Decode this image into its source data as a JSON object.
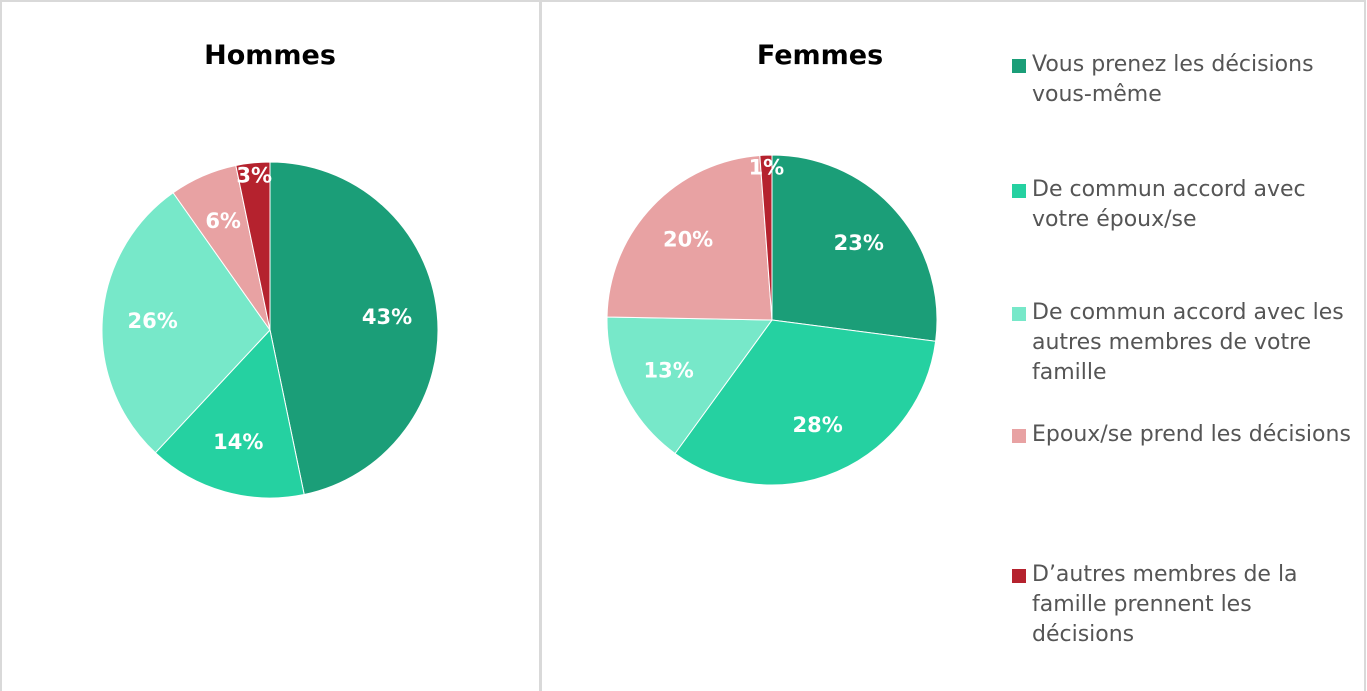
{
  "chart_data": [
    {
      "type": "pie",
      "title": "Hommes",
      "values": [
        43,
        14,
        26,
        6,
        3
      ],
      "value_labels": [
        "43%",
        "14%",
        "26%",
        "6%",
        "3%"
      ]
    },
    {
      "type": "pie",
      "title": "Femmes",
      "values": [
        23,
        28,
        13,
        20,
        1
      ],
      "value_labels": [
        "23%",
        "28%",
        "13%",
        "20%",
        "1%"
      ]
    }
  ],
  "legend": {
    "categories": [
      "Vous prenez les décisions vous-même",
      "De commun accord avec votre époux/se",
      "De commun accord avec les autres membres de votre famille",
      "Epoux/se prend les décisions",
      "D’autres membres de la famille prennent les décisions"
    ],
    "colors": [
      "#1b9e78",
      "#25d1a1",
      "#77e8c9",
      "#e8a2a3",
      "#b5222e"
    ]
  }
}
